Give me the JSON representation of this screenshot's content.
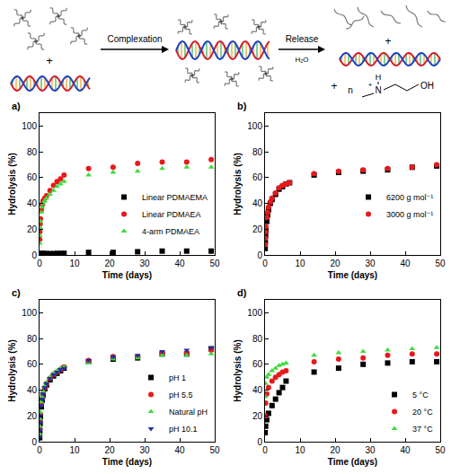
{
  "scheme": {
    "step1": "Complexation",
    "step2": "Release",
    "step2_reagent": "H₂O",
    "plus": "+",
    "product": {
      "count": "n",
      "H": "H",
      "N": "N",
      "charge": "+",
      "OH": "OH"
    }
  },
  "chart_data": [
    {
      "type": "scatter",
      "label": "a)",
      "x_label": "Time (days)",
      "y_label": "Hydrolysis (%)",
      "xlim": [
        0,
        50
      ],
      "xticks": [
        0,
        10,
        20,
        30,
        40,
        50
      ],
      "ylim": [
        0,
        110
      ],
      "yticks": [
        0,
        20,
        40,
        60,
        80,
        100
      ],
      "grid": false,
      "legend": "right",
      "series": [
        {
          "name": "Linear PDMAEMA",
          "color": "#000000",
          "marker": "square",
          "x": [
            0.04,
            0.08,
            0.17,
            0.25,
            0.5,
            0.75,
            1,
            1.5,
            2,
            3,
            4,
            5,
            6,
            7,
            14,
            21,
            28,
            35,
            42,
            49
          ],
          "values": [
            0.5,
            0.7,
            0.8,
            1,
            1,
            1,
            1,
            1,
            1,
            1,
            1,
            1.2,
            1.2,
            1.3,
            2,
            2,
            2.5,
            3,
            3,
            3
          ]
        },
        {
          "name": "Linear PDMAEA",
          "color": "#e8191b",
          "marker": "circle",
          "x": [
            0.04,
            0.08,
            0.17,
            0.25,
            0.5,
            0.75,
            1,
            1.5,
            2,
            3,
            4,
            5,
            6,
            7,
            14,
            21,
            28,
            35,
            42,
            49
          ],
          "values": [
            12,
            18,
            24,
            28,
            35,
            39,
            42,
            44,
            46,
            50,
            54,
            57,
            59,
            62,
            67,
            68,
            71,
            72,
            72,
            74
          ]
        },
        {
          "name": "4-arm PDMAEA",
          "color": "#3ddc3d",
          "marker": "triangle-up",
          "x": [
            0.04,
            0.08,
            0.17,
            0.25,
            0.5,
            0.75,
            1,
            1.5,
            2,
            3,
            4,
            5,
            6,
            7,
            14,
            21,
            28,
            35,
            42,
            49
          ],
          "values": [
            9,
            15,
            21,
            26,
            33,
            37,
            40,
            42,
            44,
            47,
            50,
            53,
            55,
            57,
            62,
            64,
            65,
            67,
            68,
            68
          ]
        }
      ]
    },
    {
      "type": "scatter",
      "label": "b)",
      "x_label": "Time (days)",
      "y_label": "Hydrolysis (%)",
      "xlim": [
        0,
        50
      ],
      "xticks": [
        0,
        10,
        20,
        30,
        40,
        50
      ],
      "ylim": [
        0,
        110
      ],
      "yticks": [
        0,
        20,
        40,
        60,
        80,
        100
      ],
      "grid": false,
      "legend": "right",
      "series": [
        {
          "name": "6200 g mol⁻¹",
          "color": "#000000",
          "marker": "square",
          "x": [
            0.04,
            0.08,
            0.17,
            0.25,
            0.5,
            0.75,
            1,
            1.5,
            2,
            3,
            4,
            5,
            6,
            7,
            14,
            21,
            28,
            35,
            42,
            49
          ],
          "values": [
            5,
            10,
            15,
            19,
            26,
            31,
            35,
            40,
            43,
            47,
            51,
            53,
            55,
            56,
            62,
            64,
            65,
            66,
            68,
            69
          ]
        },
        {
          "name": "3000 g mol⁻¹",
          "color": "#e8191b",
          "marker": "circle",
          "x": [
            0.04,
            0.08,
            0.17,
            0.25,
            0.5,
            0.75,
            1,
            1.5,
            2,
            3,
            4,
            5,
            6,
            7,
            14,
            21,
            28,
            35,
            42,
            49
          ],
          "values": [
            8,
            13,
            18,
            22,
            29,
            33,
            37,
            41,
            44,
            48,
            52,
            54,
            55,
            56,
            63,
            65,
            66,
            67,
            68,
            70
          ]
        }
      ]
    },
    {
      "type": "scatter",
      "label": "c)",
      "x_label": "Time (days)",
      "y_label": "Hydrolysis (%)",
      "xlim": [
        0,
        50
      ],
      "xticks": [
        0,
        10,
        20,
        30,
        40,
        50
      ],
      "ylim": [
        0,
        110
      ],
      "yticks": [
        0,
        20,
        40,
        60,
        80,
        100
      ],
      "grid": false,
      "legend": "bottom right",
      "series": [
        {
          "name": "pH 1",
          "color": "#000000",
          "marker": "square",
          "x": [
            0.04,
            0.08,
            0.17,
            0.25,
            0.5,
            0.75,
            1,
            1.5,
            2,
            3,
            4,
            5,
            6,
            7,
            14,
            21,
            28,
            35,
            42,
            49
          ],
          "values": [
            3,
            8,
            14,
            19,
            27,
            32,
            36,
            41,
            44,
            48,
            51,
            53,
            55,
            57,
            62,
            64,
            65,
            68,
            68,
            72
          ]
        },
        {
          "name": "pH 5.5",
          "color": "#e8191b",
          "marker": "circle",
          "x": [
            0.04,
            0.08,
            0.17,
            0.25,
            0.5,
            0.75,
            1,
            1.5,
            2,
            3,
            4,
            5,
            6,
            7,
            14,
            21,
            28,
            35,
            42,
            49
          ],
          "values": [
            5,
            10,
            16,
            21,
            29,
            34,
            38,
            42,
            45,
            49,
            52,
            54,
            56,
            58,
            63,
            66,
            66,
            69,
            69,
            71
          ]
        },
        {
          "name": "Natural pH",
          "color": "#3ddc3d",
          "marker": "triangle-up",
          "x": [
            0.04,
            0.08,
            0.17,
            0.25,
            0.5,
            0.75,
            1,
            1.5,
            2,
            3,
            4,
            5,
            6,
            7,
            14,
            21,
            28,
            35,
            42,
            49
          ],
          "values": [
            6,
            12,
            18,
            23,
            31,
            35,
            39,
            43,
            46,
            50,
            53,
            55,
            57,
            58,
            61,
            64,
            65,
            67,
            67,
            68
          ]
        },
        {
          "name": "pH 10.1",
          "color": "#1f2fa8",
          "marker": "triangle-down",
          "x": [
            0.04,
            0.08,
            0.17,
            0.25,
            0.5,
            0.75,
            1,
            1.5,
            2,
            3,
            4,
            5,
            6,
            7,
            14,
            21,
            28,
            35,
            42,
            49
          ],
          "values": [
            4,
            9,
            15,
            20,
            28,
            33,
            37,
            42,
            45,
            49,
            52,
            54,
            56,
            57,
            63,
            66,
            67,
            70,
            71,
            73
          ]
        }
      ]
    },
    {
      "type": "scatter",
      "label": "d)",
      "x_label": "Time (days)",
      "y_label": "Hydrolysis (%)",
      "xlim": [
        0,
        50
      ],
      "xticks": [
        0,
        10,
        20,
        30,
        40,
        50
      ],
      "ylim": [
        0,
        110
      ],
      "yticks": [
        0,
        20,
        40,
        60,
        80,
        100
      ],
      "grid": false,
      "legend": "bottom right",
      "series": [
        {
          "name": "5 °C",
          "color": "#000000",
          "marker": "square",
          "x": [
            0.04,
            0.17,
            0.5,
            1,
            2,
            3,
            4,
            5,
            6,
            14,
            21,
            28,
            35,
            42,
            49
          ],
          "values": [
            7,
            12,
            17,
            22,
            28,
            33,
            38,
            42,
            47,
            54,
            57,
            60,
            61,
            62,
            62
          ]
        },
        {
          "name": "20 °C",
          "color": "#e8191b",
          "marker": "circle",
          "x": [
            0.04,
            0.17,
            0.5,
            1,
            2,
            3,
            4,
            5,
            6,
            14,
            21,
            28,
            35,
            42,
            49
          ],
          "values": [
            20,
            30,
            37,
            42,
            47,
            50,
            52,
            54,
            55,
            62,
            64,
            65,
            67,
            68,
            68
          ]
        },
        {
          "name": "37 °C",
          "color": "#3ddc3d",
          "marker": "triangle-up",
          "x": [
            0.04,
            0.17,
            0.5,
            1,
            2,
            3,
            4,
            5,
            6,
            14,
            21,
            28,
            35,
            42,
            49
          ],
          "values": [
            35,
            45,
            50,
            52,
            55,
            57,
            59,
            60,
            61,
            67,
            69,
            70,
            71,
            72,
            73
          ]
        }
      ]
    }
  ]
}
